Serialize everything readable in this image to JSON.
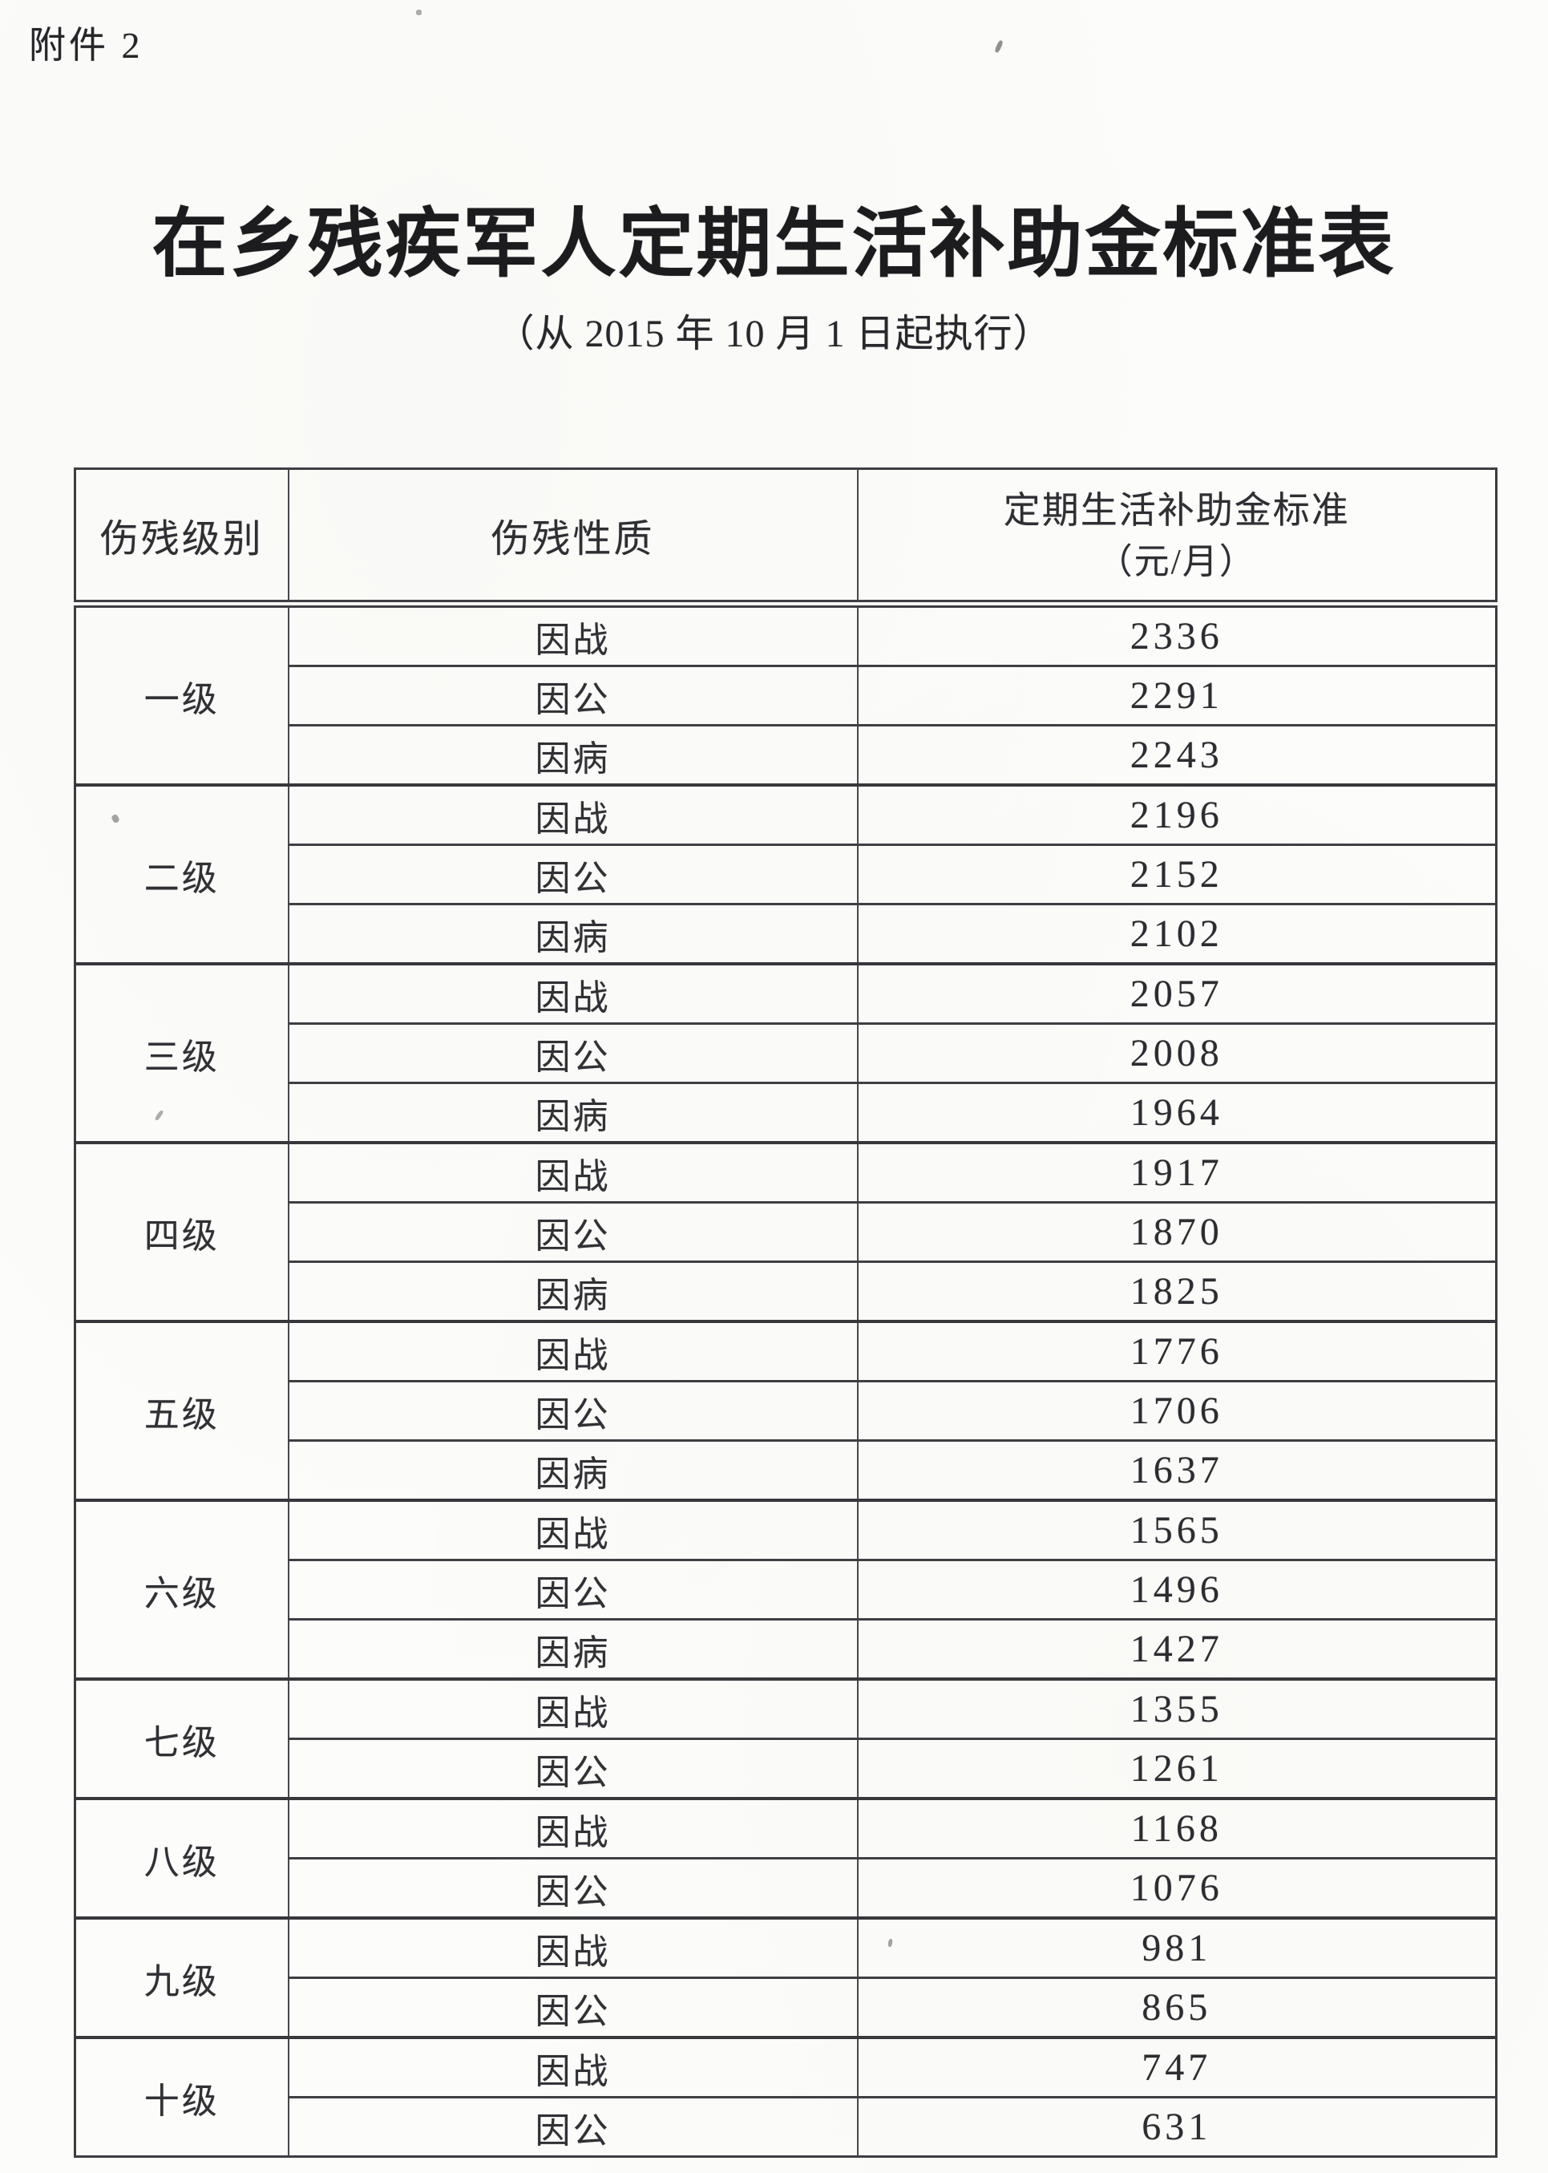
{
  "attachment_label": "附件 2",
  "title": "在乡残疾军人定期生活补助金标准表",
  "subtitle": "（从 2015 年 10 月 1 日起执行）",
  "table": {
    "header": {
      "level": "伤残级别",
      "nature": "伤残性质",
      "standard_line1": "定期生活补助金标准",
      "standard_line2": "（元/月）"
    },
    "groups": [
      {
        "level": "一级",
        "rows": [
          {
            "nature": "因战",
            "amount": "2336"
          },
          {
            "nature": "因公",
            "amount": "2291"
          },
          {
            "nature": "因病",
            "amount": "2243"
          }
        ]
      },
      {
        "level": "二级",
        "rows": [
          {
            "nature": "因战",
            "amount": "2196"
          },
          {
            "nature": "因公",
            "amount": "2152"
          },
          {
            "nature": "因病",
            "amount": "2102"
          }
        ]
      },
      {
        "level": "三级",
        "rows": [
          {
            "nature": "因战",
            "amount": "2057"
          },
          {
            "nature": "因公",
            "amount": "2008"
          },
          {
            "nature": "因病",
            "amount": "1964"
          }
        ]
      },
      {
        "level": "四级",
        "rows": [
          {
            "nature": "因战",
            "amount": "1917"
          },
          {
            "nature": "因公",
            "amount": "1870"
          },
          {
            "nature": "因病",
            "amount": "1825"
          }
        ]
      },
      {
        "level": "五级",
        "rows": [
          {
            "nature": "因战",
            "amount": "1776"
          },
          {
            "nature": "因公",
            "amount": "1706"
          },
          {
            "nature": "因病",
            "amount": "1637"
          }
        ]
      },
      {
        "level": "六级",
        "rows": [
          {
            "nature": "因战",
            "amount": "1565"
          },
          {
            "nature": "因公",
            "amount": "1496"
          },
          {
            "nature": "因病",
            "amount": "1427"
          }
        ]
      },
      {
        "level": "七级",
        "rows": [
          {
            "nature": "因战",
            "amount": "1355"
          },
          {
            "nature": "因公",
            "amount": "1261"
          }
        ]
      },
      {
        "level": "八级",
        "rows": [
          {
            "nature": "因战",
            "amount": "1168"
          },
          {
            "nature": "因公",
            "amount": "1076"
          }
        ]
      },
      {
        "level": "九级",
        "rows": [
          {
            "nature": "因战",
            "amount": "981"
          },
          {
            "nature": "因公",
            "amount": "865"
          }
        ]
      },
      {
        "level": "十级",
        "rows": [
          {
            "nature": "因战",
            "amount": "747"
          },
          {
            "nature": "因公",
            "amount": "631"
          }
        ]
      }
    ]
  }
}
